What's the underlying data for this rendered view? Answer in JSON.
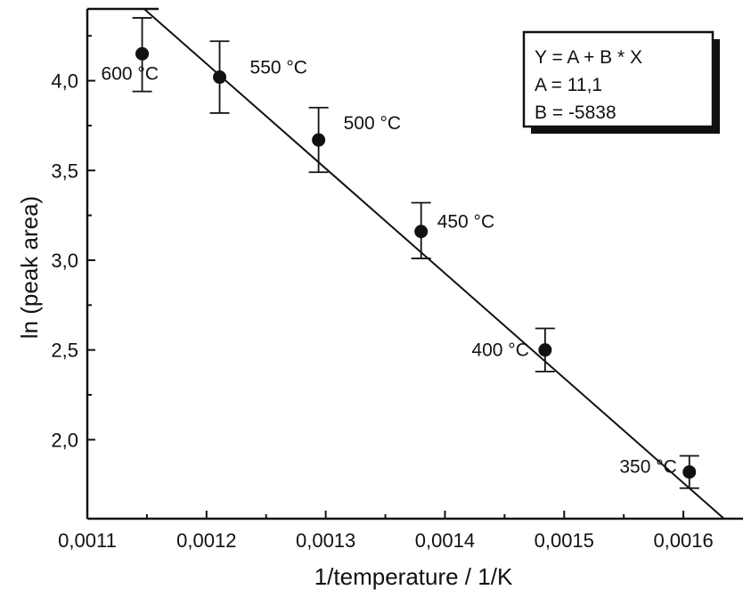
{
  "chart_data": {
    "type": "scatter",
    "title": "",
    "xlabel": "1/temperature / 1/K",
    "ylabel": "ln (peak area)",
    "xlim": [
      0.0011,
      0.00165
    ],
    "ylim": [
      1.56,
      4.4
    ],
    "xticks": [
      0.0011,
      0.0012,
      0.0013,
      0.0014,
      0.0015,
      0.0016
    ],
    "xtick_labels": [
      "0,0011",
      "0,0012",
      "0,0013",
      "0,0014",
      "0,0015",
      "0,0016"
    ],
    "yticks": [
      2.0,
      2.5,
      3.0,
      3.5,
      4.0
    ],
    "ytick_labels": [
      "2,0",
      "2,5",
      "3,0",
      "3,5",
      "4,0"
    ],
    "grid": false,
    "points": [
      {
        "x": 0.001146,
        "y": 4.15,
        "yerr_low": 3.94,
        "yerr_high": 4.35,
        "label": "600 °C"
      },
      {
        "x": 0.001211,
        "y": 4.02,
        "yerr_low": 3.82,
        "yerr_high": 4.22,
        "label": "550 °C"
      },
      {
        "x": 0.001294,
        "y": 3.67,
        "yerr_low": 3.49,
        "yerr_high": 3.85,
        "label": "500 °C"
      },
      {
        "x": 0.00138,
        "y": 3.16,
        "yerr_low": 3.01,
        "yerr_high": 3.32,
        "label": "450 °C"
      },
      {
        "x": 0.001484,
        "y": 2.5,
        "yerr_low": 2.38,
        "yerr_high": 2.62,
        "label": "400 °C"
      },
      {
        "x": 0.001605,
        "y": 1.82,
        "yerr_low": 1.73,
        "yerr_high": 1.91,
        "label": "350 °C"
      }
    ],
    "fit": {
      "A": 11.1,
      "B": -5838
    },
    "legend": {
      "position": "top-right",
      "lines": [
        "Y = A + B * X",
        "A = 11,1",
        "B = -5838"
      ]
    }
  }
}
